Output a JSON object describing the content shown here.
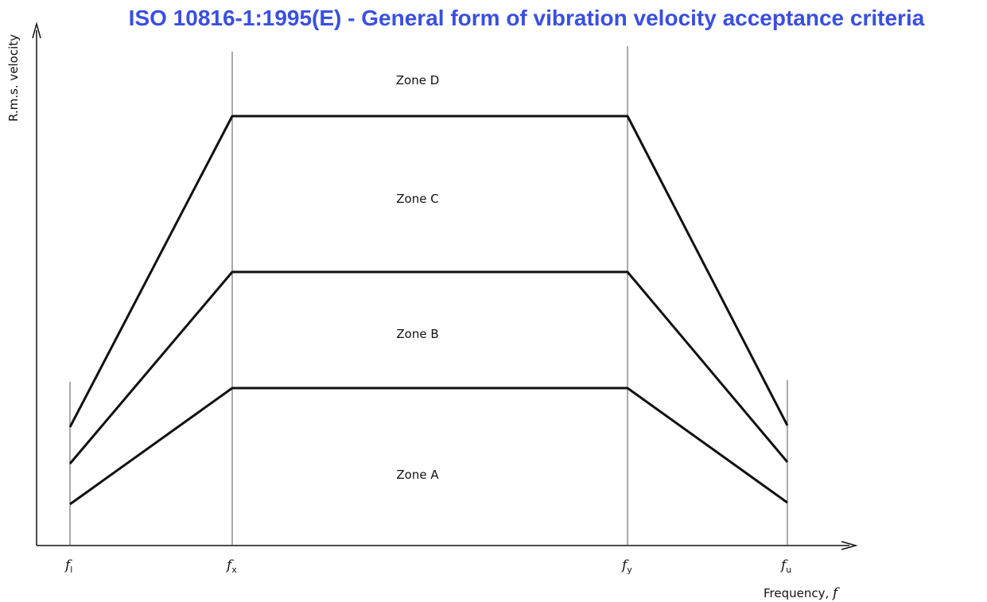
{
  "title": "ISO 10816-1:1995(E) - General form of vibration velocity acceptance criteria",
  "y_axis_label": "R.m.s. velocity",
  "x_axis_label": {
    "text": "Frequency, ",
    "symbol": "f"
  },
  "zones": [
    "Zone D",
    "Zone C",
    "Zone B",
    "Zone A"
  ],
  "frequency_marks": [
    {
      "symbol": "f",
      "subscript": "l"
    },
    {
      "symbol": "f",
      "subscript": "x"
    },
    {
      "symbol": "f",
      "subscript": "y"
    },
    {
      "symbol": "f",
      "subscript": "u"
    }
  ]
}
